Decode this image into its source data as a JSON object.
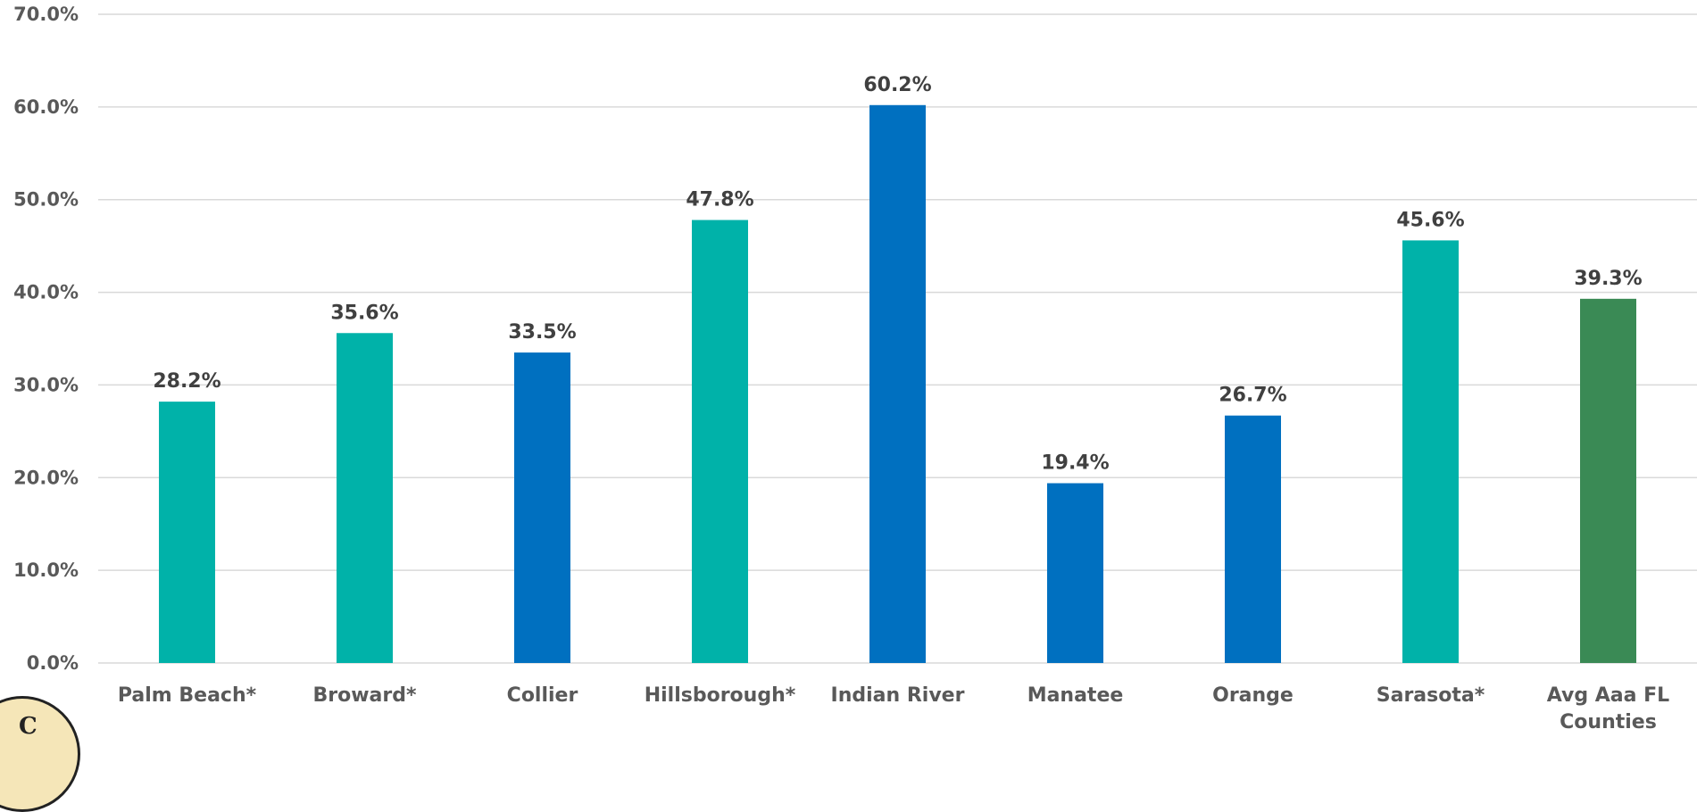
{
  "chart_data": {
    "type": "bar",
    "title": "",
    "xlabel": "",
    "ylabel": "",
    "ylim": [
      0,
      70
    ],
    "y_ticks": [
      "0.0%",
      "10.0%",
      "20.0%",
      "30.0%",
      "40.0%",
      "50.0%",
      "60.0%",
      "70.0%"
    ],
    "grid": true,
    "legend": "none",
    "categories": [
      "Palm Beach*",
      "Broward*",
      "Collier",
      "Hillsborough*",
      "Indian River",
      "Manatee",
      "Orange",
      "Sarasota*",
      "Avg Aaa FL Counties"
    ],
    "category_lines": [
      [
        "Palm Beach*"
      ],
      [
        "Broward*"
      ],
      [
        "Collier"
      ],
      [
        "Hillsborough*"
      ],
      [
        "Indian River"
      ],
      [
        "Manatee"
      ],
      [
        "Orange"
      ],
      [
        "Sarasota*"
      ],
      [
        "Avg Aaa FL",
        "Counties"
      ]
    ],
    "values": [
      28.2,
      35.6,
      33.5,
      47.8,
      60.2,
      19.4,
      26.7,
      45.6,
      39.3
    ],
    "value_labels": [
      "28.2%",
      "35.6%",
      "33.5%",
      "47.8%",
      "60.2%",
      "19.4%",
      "26.7%",
      "45.6%",
      "39.3%"
    ],
    "bar_colors": [
      "#00b2a9",
      "#00b2a9",
      "#0070c0",
      "#00b2a9",
      "#0070c0",
      "#0070c0",
      "#0070c0",
      "#00b2a9",
      "#3a8a55"
    ]
  },
  "seal": {
    "letter": "C"
  }
}
